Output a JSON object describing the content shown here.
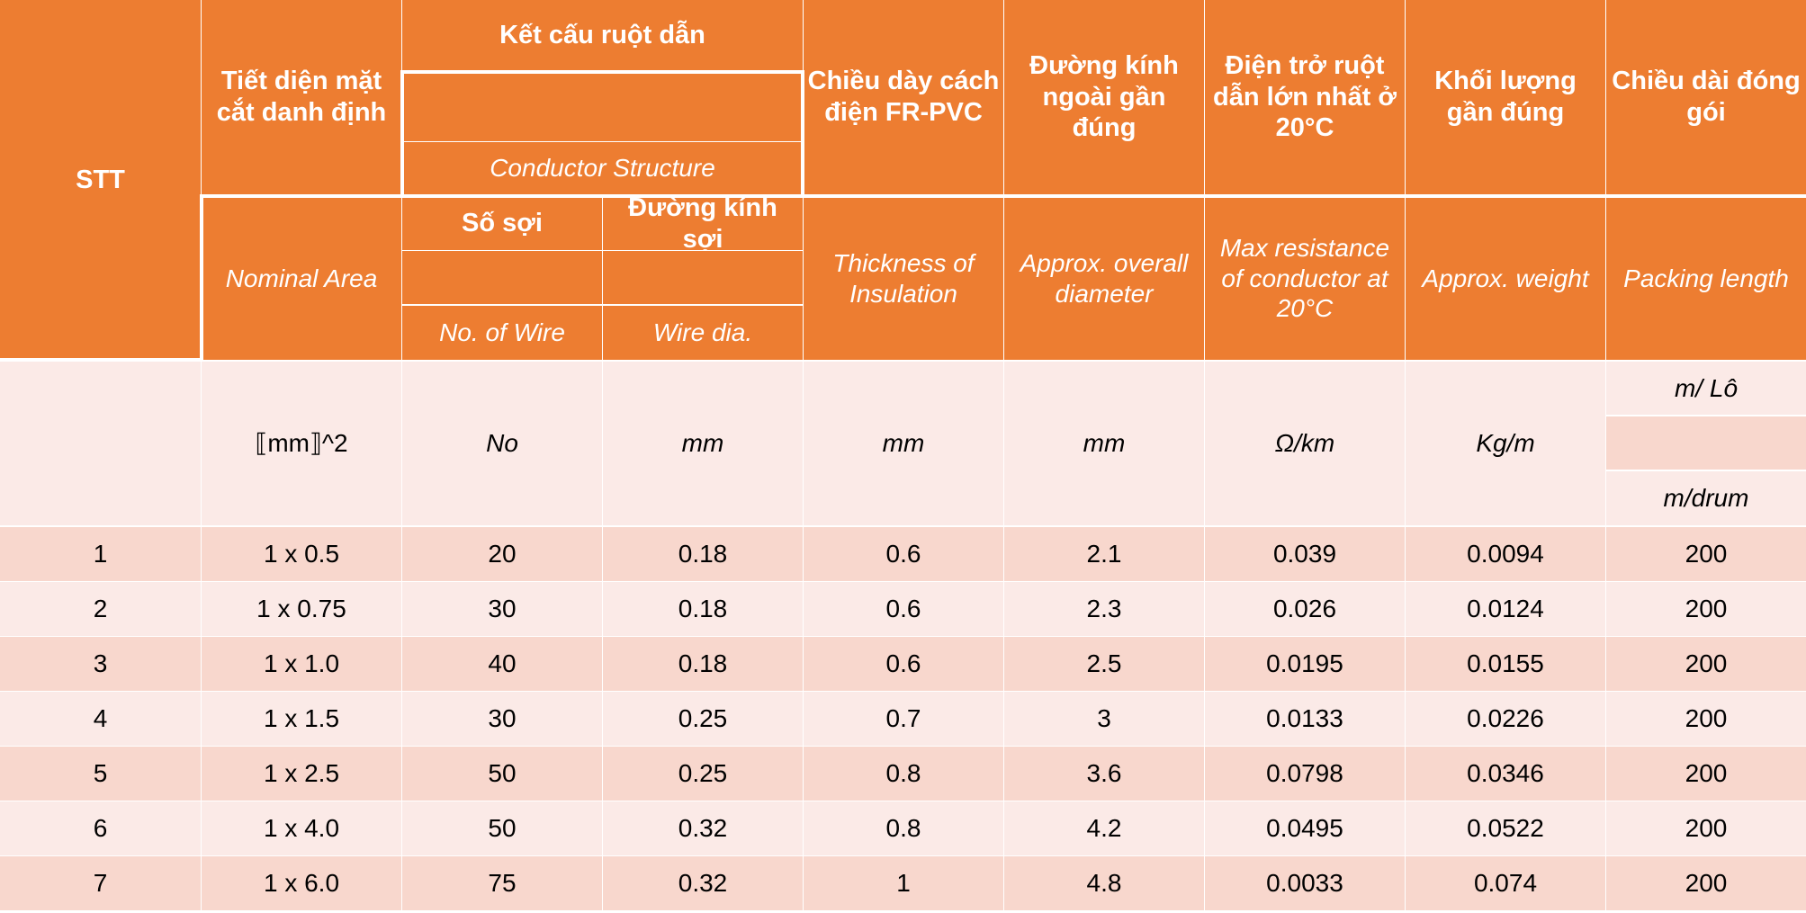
{
  "header": {
    "stt": "STT",
    "area_vi": "Tiết diện mặt cắt danh định",
    "area_en": "Nominal Area",
    "structure_vi": "Kết cấu ruột dẫn",
    "structure_en": "Conductor Structure",
    "wire_count_vi": "Số sợi",
    "wire_count_en": "No. of Wire",
    "wire_dia_vi": "Đường kính sợi",
    "wire_dia_en": "Wire dia.",
    "insulation_vi": "Chiều dày cách điện FR-PVC",
    "insulation_en": "Thickness of Insulation",
    "diameter_vi": "Đường kính ngoài gần đúng",
    "diameter_en": "Approx. overall diameter",
    "resistance_vi": "Điện trở ruột dẫn lớn nhất ở 20°C",
    "resistance_en": "Max resistance of conductor at 20°C",
    "weight_vi": "Khối lượng gần đúng",
    "weight_en": "Approx. weight",
    "packing_vi": "Chiều dài đóng gói",
    "packing_en": "Packing length"
  },
  "units": {
    "area": "⟦mm⟧^2",
    "wire_count": "No",
    "wire_dia": "mm",
    "insulation": "mm",
    "diameter": "mm",
    "resistance": "Ω/km",
    "weight": "Kg/m",
    "packing_vi": "m/ Lô",
    "packing_en": "m/drum"
  },
  "rows": [
    [
      "1",
      "1 x 0.5",
      "20",
      "0.18",
      "0.6",
      "2.1",
      "0.039",
      "0.0094",
      "200"
    ],
    [
      "2",
      "1 x 0.75",
      "30",
      "0.18",
      "0.6",
      "2.3",
      "0.026",
      "0.0124",
      "200"
    ],
    [
      "3",
      "1 x 1.0",
      "40",
      "0.18",
      "0.6",
      "2.5",
      "0.0195",
      "0.0155",
      "200"
    ],
    [
      "4",
      "1 x 1.5",
      "30",
      "0.25",
      "0.7",
      "3",
      "0.0133",
      "0.0226",
      "200"
    ],
    [
      "5",
      "1 x 2.5",
      "50",
      "0.25",
      "0.8",
      "3.6",
      "0.0798",
      "0.0346",
      "200"
    ],
    [
      "6",
      "1 x 4.0",
      "50",
      "0.32",
      "0.8",
      "4.2",
      "0.0495",
      "0.0522",
      "200"
    ],
    [
      "7",
      "1 x 6.0",
      "75",
      "0.32",
      "1",
      "4.8",
      "0.0033",
      "0.074",
      "200"
    ]
  ],
  "colors": {
    "header": "#ED7D31",
    "row_dark": "#F8D7CD",
    "row_light": "#FBEAE7",
    "header_text": "#FFFFFF"
  }
}
